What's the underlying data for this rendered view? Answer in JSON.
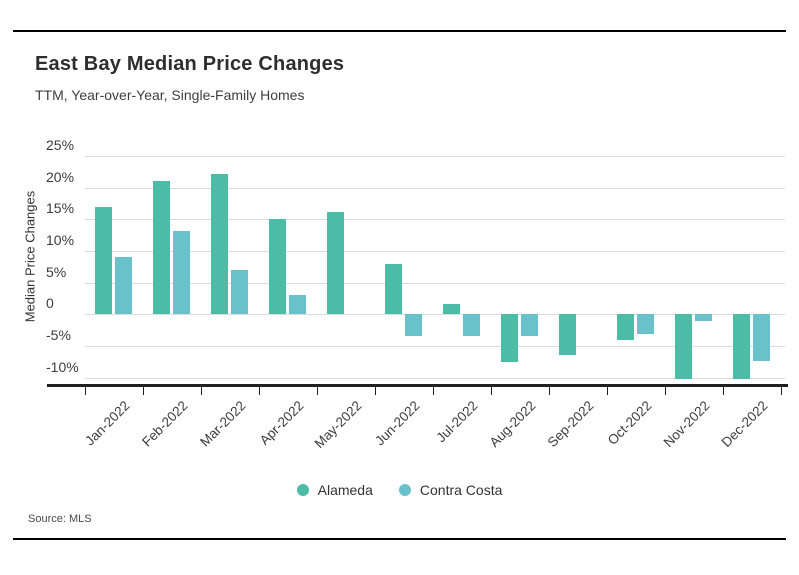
{
  "header": {
    "title": "East Bay Median Price Changes",
    "subtitle": "TTM, Year-over-Year, Single-Family Homes"
  },
  "y_axis": {
    "title": "Median Price Changes"
  },
  "legend": {
    "items": [
      {
        "label": "Alameda",
        "color": "#4dbca6"
      },
      {
        "label": "Contra Costa",
        "color": "#69c1cc"
      }
    ]
  },
  "footer": {
    "source": "Source: MLS"
  },
  "colors": {
    "alameda": "#4dbca6",
    "contra_costa": "#69c1cc",
    "grid": "#dddddd",
    "axis": "#1f1f1f",
    "text": "#3c3c3c"
  },
  "chart_data": {
    "type": "bar",
    "title": "East Bay Median Price Changes",
    "subtitle": "TTM, Year-over-Year, Single-Family Homes",
    "xlabel": "",
    "ylabel": "Median Price Changes",
    "categories": [
      "Jan-2022",
      "Feb-2022",
      "Mar-2022",
      "Apr-2022",
      "May-2022",
      "Jun-2022",
      "Jul-2022",
      "Aug-2022",
      "Sep-2022",
      "Oct-2022",
      "Nov-2022",
      "Dec-2022"
    ],
    "series": [
      {
        "name": "Alameda",
        "color": "#4dbca6",
        "values": [
          17.0,
          21.1,
          22.2,
          15.0,
          16.2,
          7.9,
          1.7,
          -7.5,
          -6.4,
          -4.1,
          -10.2,
          -10.2
        ]
      },
      {
        "name": "Contra Costa",
        "color": "#69c1cc",
        "values": [
          9.0,
          13.2,
          7.0,
          3.0,
          null,
          -3.4,
          -3.4,
          -3.4,
          null,
          -3.2,
          -1.0,
          -7.4
        ]
      }
    ],
    "y_ticks": [
      25,
      20,
      15,
      10,
      5,
      0,
      -5,
      -10
    ],
    "y_tick_labels": [
      "25%",
      "20%",
      "15%",
      "10%",
      "5%",
      "0",
      "-5%",
      "-10%"
    ],
    "ylim": [
      -11,
      27.5
    ],
    "unit": "percent",
    "grid": true,
    "legend_position": "bottom",
    "source": "MLS"
  }
}
